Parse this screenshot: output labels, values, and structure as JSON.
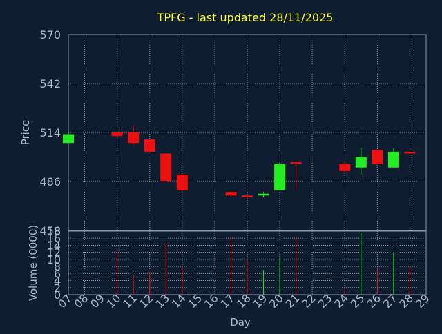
{
  "chart_data": {
    "type": "candlestick",
    "title": "TPFG - last updated 28/11/2025",
    "xlabel": "Day",
    "ylabel": "Price",
    "volume_label": "Volume (0000)",
    "grid": true,
    "price_ylim": [
      458,
      570
    ],
    "price_ticks": [
      "570",
      "542",
      "514",
      "486",
      "458"
    ],
    "volume_ylim": [
      0,
      18
    ],
    "volume_ticks": [
      "18",
      "16",
      "14",
      "12",
      "10",
      "8",
      "6",
      "4",
      "2",
      "0"
    ],
    "x_ticks": [
      "07",
      "08",
      "09",
      "10",
      "11",
      "12",
      "13",
      "14",
      "15",
      "16",
      "17",
      "18",
      "19",
      "20",
      "21",
      "22",
      "23",
      "24",
      "25",
      "26",
      "27",
      "28",
      "29"
    ],
    "colors": {
      "background": "#0f1d30",
      "up": "#22ee22",
      "down": "#ee1111",
      "text": "#aabbcc",
      "title": "#ffff33",
      "grid": "#8899aa"
    },
    "candles": [
      {
        "day": "07",
        "open": 508,
        "high": 513,
        "low": 508,
        "close": 513
      },
      {
        "day": "10",
        "open": 514,
        "high": 514,
        "low": 511,
        "close": 512
      },
      {
        "day": "11",
        "open": 514,
        "high": 518,
        "low": 507,
        "close": 508
      },
      {
        "day": "12",
        "open": 510,
        "high": 510,
        "low": 503,
        "close": 503
      },
      {
        "day": "13",
        "open": 502,
        "high": 502,
        "low": 486,
        "close": 486
      },
      {
        "day": "14",
        "open": 490,
        "high": 490,
        "low": 480,
        "close": 481
      },
      {
        "day": "17",
        "open": 480,
        "high": 480,
        "low": 477,
        "close": 478
      },
      {
        "day": "18",
        "open": 478,
        "high": 478,
        "low": 476,
        "close": 477
      },
      {
        "day": "19",
        "open": 478,
        "high": 480,
        "low": 477,
        "close": 479
      },
      {
        "day": "20",
        "open": 481,
        "high": 497,
        "low": 481,
        "close": 496
      },
      {
        "day": "21",
        "open": 497,
        "high": 497,
        "low": 481,
        "close": 496
      },
      {
        "day": "24",
        "open": 496,
        "high": 498,
        "low": 491,
        "close": 492
      },
      {
        "day": "25",
        "open": 494,
        "high": 505,
        "low": 490,
        "close": 500
      },
      {
        "day": "26",
        "open": 504,
        "high": 504,
        "low": 496,
        "close": 496
      },
      {
        "day": "27",
        "open": 494,
        "high": 505,
        "low": 494,
        "close": 503
      },
      {
        "day": "28",
        "open": 503,
        "high": 503,
        "low": 501,
        "close": 502
      }
    ],
    "volume": [
      {
        "day": "10",
        "value": 12,
        "dir": "down"
      },
      {
        "day": "11",
        "value": 5.5,
        "dir": "down"
      },
      {
        "day": "12",
        "value": 6.5,
        "dir": "down"
      },
      {
        "day": "13",
        "value": 15,
        "dir": "down"
      },
      {
        "day": "14",
        "value": 8,
        "dir": "down"
      },
      {
        "day": "17",
        "value": 16,
        "dir": "down"
      },
      {
        "day": "18",
        "value": 10,
        "dir": "down"
      },
      {
        "day": "19",
        "value": 7,
        "dir": "up"
      },
      {
        "day": "20",
        "value": 10.5,
        "dir": "up"
      },
      {
        "day": "21",
        "value": 16,
        "dir": "down"
      },
      {
        "day": "24",
        "value": 2,
        "dir": "down"
      },
      {
        "day": "25",
        "value": 17.5,
        "dir": "up"
      },
      {
        "day": "26",
        "value": 7.5,
        "dir": "down"
      },
      {
        "day": "27",
        "value": 12,
        "dir": "up"
      },
      {
        "day": "28",
        "value": 8,
        "dir": "down"
      }
    ]
  }
}
